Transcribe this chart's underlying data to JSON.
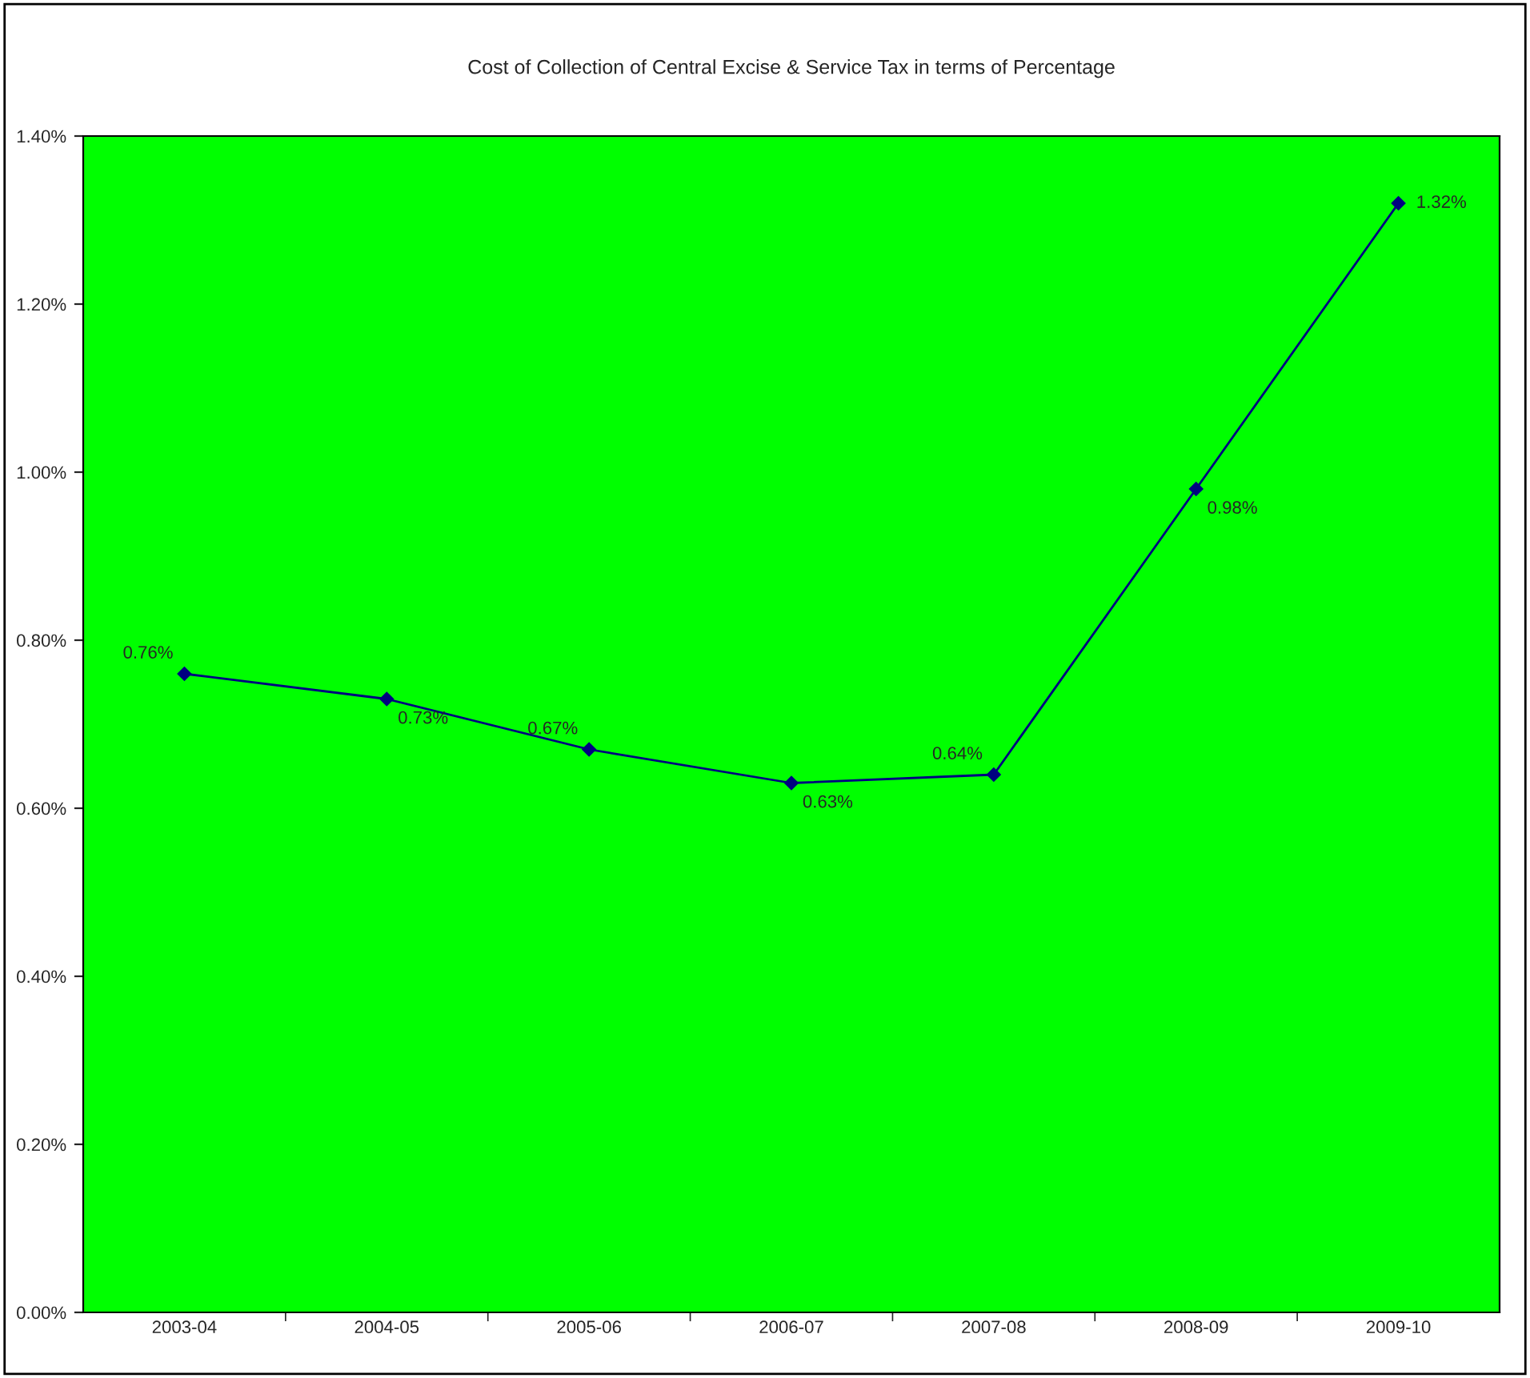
{
  "chart_data": {
    "type": "line",
    "title": "Cost of Collection of Central Excise & Service Tax in terms of Percentage",
    "categories": [
      "2003-04",
      "2004-05",
      "2005-06",
      "2006-07",
      "2007-08",
      "2008-09",
      "2009-10"
    ],
    "series": [
      {
        "color": "#000080",
        "values": [
          0.76,
          0.73,
          0.67,
          0.63,
          0.64,
          0.98,
          1.32
        ],
        "value_labels": [
          "0.76%",
          "0.73%",
          "0.67%",
          "0.63%",
          "0.64%",
          "0.98%",
          "1.32%"
        ]
      }
    ],
    "ylim": [
      0,
      1.4
    ],
    "yticks": [
      {
        "value": 0,
        "label": "0.00%"
      },
      {
        "value": 0.2,
        "label": "0.20%"
      },
      {
        "value": 0.4,
        "label": "0.40%"
      },
      {
        "value": 0.6,
        "label": "0.60%"
      },
      {
        "value": 0.8,
        "label": "0.80%"
      },
      {
        "value": 1.0,
        "label": "1.00%"
      },
      {
        "value": 1.2,
        "label": "1.20%"
      },
      {
        "value": 1.4,
        "label": "1.40%"
      }
    ],
    "grid": false,
    "legend": false,
    "marker": "diamond",
    "line_style": "solid"
  }
}
